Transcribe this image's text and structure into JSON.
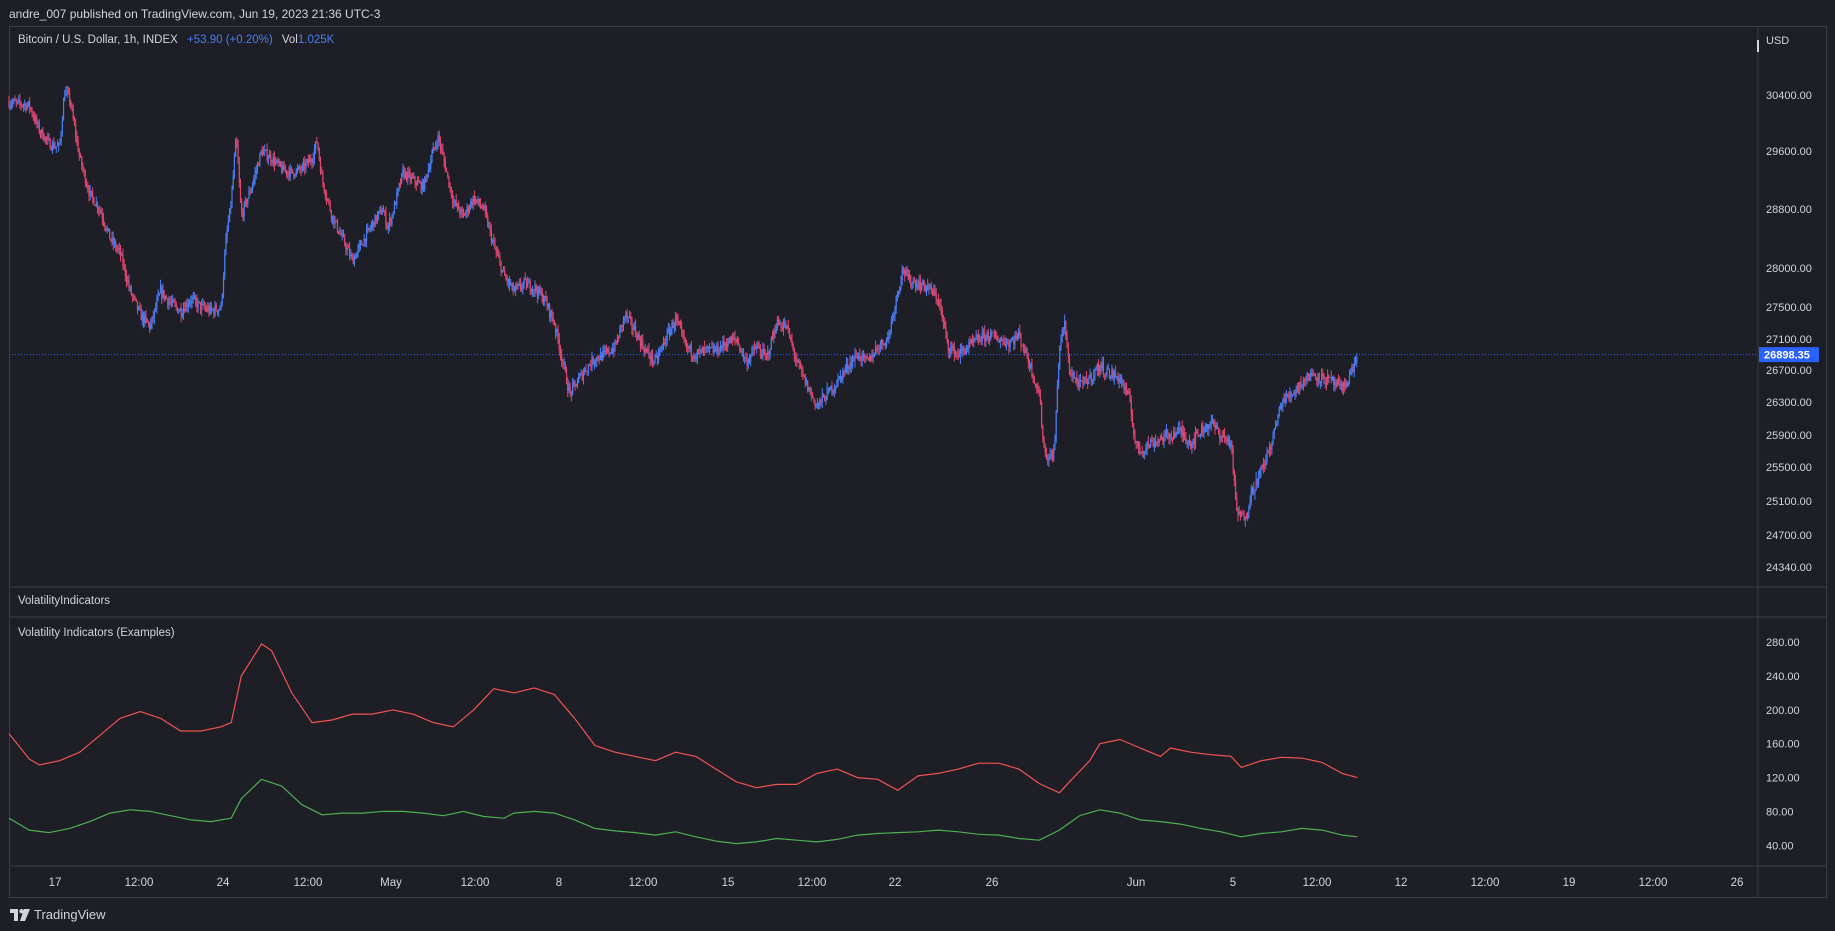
{
  "header": {
    "published": "andre_007 published on TradingView.com, Jun 19, 2023 21:36 UTC-3"
  },
  "legend": {
    "symbol": "Bitcoin / U.S. Dollar, 1h, INDEX",
    "change": "+53.90 (+0.20%)",
    "vol_label": "Vol",
    "vol_value": "1.025K"
  },
  "price_axis": {
    "currency": "USD",
    "last_price": "26898.35"
  },
  "panes": {
    "indicator_title": "VolatilityIndicators",
    "indicator_subtitle": "Volatility Indicators (Examples)"
  },
  "branding": {
    "logo_text": "TradingView"
  },
  "colors": {
    "background": "#1e1f26",
    "up_candle": "#4a7df4",
    "down_candle": "#e0466e",
    "red_line": "#f05350",
    "green_line": "#4caf50",
    "last_price_badge": "#2962ff"
  },
  "chart_data": [
    {
      "type": "candlestick",
      "symbol": "Bitcoin / U.S. Dollar",
      "interval": "1h",
      "price_ticks": [
        30400,
        29600,
        28800,
        28000,
        27500,
        27100,
        26700,
        26300,
        25900,
        25500,
        25100,
        24700,
        24340
      ],
      "ylim": [
        24340,
        30400
      ],
      "last_price": 26898.35,
      "x_ticks": [
        "17",
        "12:00",
        "24",
        "12:00",
        "May",
        "12:00",
        "8",
        "12:00",
        "15",
        "12:00",
        "22",
        "26",
        "Jun",
        "5",
        "12:00",
        "12",
        "12:00",
        "19",
        "12:00",
        "26"
      ],
      "close_path": [
        [
          0.0,
          30300
        ],
        [
          0.02,
          30250
        ],
        [
          0.03,
          29900
        ],
        [
          0.04,
          29700
        ],
        [
          0.05,
          29650
        ],
        [
          0.055,
          30450
        ],
        [
          0.06,
          30350
        ],
        [
          0.07,
          29500
        ],
        [
          0.08,
          29000
        ],
        [
          0.09,
          28800
        ],
        [
          0.1,
          28400
        ],
        [
          0.11,
          28200
        ],
        [
          0.12,
          27700
        ],
        [
          0.13,
          27400
        ],
        [
          0.14,
          27250
        ],
        [
          0.15,
          27700
        ],
        [
          0.16,
          27550
        ],
        [
          0.17,
          27450
        ],
        [
          0.18,
          27600
        ],
        [
          0.19,
          27500
        ],
        [
          0.2,
          27450
        ],
        [
          0.21,
          27500
        ],
        [
          0.215,
          28400
        ],
        [
          0.22,
          28900
        ],
        [
          0.225,
          29800
        ],
        [
          0.23,
          28700
        ],
        [
          0.24,
          29100
        ],
        [
          0.25,
          29600
        ],
        [
          0.26,
          29500
        ],
        [
          0.27,
          29350
        ],
        [
          0.28,
          29300
        ],
        [
          0.29,
          29350
        ],
        [
          0.3,
          29500
        ],
        [
          0.305,
          29750
        ],
        [
          0.31,
          29200
        ],
        [
          0.32,
          28700
        ],
        [
          0.33,
          28400
        ],
        [
          0.34,
          28100
        ],
        [
          0.35,
          28350
        ],
        [
          0.36,
          28600
        ],
        [
          0.37,
          28800
        ],
        [
          0.375,
          28550
        ],
        [
          0.38,
          28750
        ],
        [
          0.39,
          29300
        ],
        [
          0.4,
          29200
        ],
        [
          0.41,
          29100
        ],
        [
          0.42,
          29600
        ],
        [
          0.425,
          29800
        ],
        [
          0.43,
          29500
        ],
        [
          0.44,
          28900
        ],
        [
          0.45,
          28700
        ],
        [
          0.46,
          28950
        ],
        [
          0.47,
          28800
        ],
        [
          0.48,
          28300
        ],
        [
          0.49,
          27900
        ],
        [
          0.5,
          27700
        ],
        [
          0.51,
          27800
        ],
        [
          0.52,
          27750
        ],
        [
          0.53,
          27600
        ],
        [
          0.54,
          27300
        ],
        [
          0.55,
          26700
        ],
        [
          0.555,
          26400
        ],
        [
          0.56,
          26500
        ],
        [
          0.57,
          26700
        ],
        [
          0.58,
          26850
        ],
        [
          0.59,
          26900
        ],
        [
          0.6,
          27000
        ],
        [
          0.61,
          27400
        ],
        [
          0.62,
          27200
        ],
        [
          0.63,
          26950
        ],
        [
          0.64,
          26800
        ],
        [
          0.65,
          27100
        ],
        [
          0.66,
          27350
        ],
        [
          0.67,
          27000
        ],
        [
          0.68,
          26900
        ],
        [
          0.69,
          26950
        ],
        [
          0.7,
          26950
        ],
        [
          0.71,
          27050
        ],
        [
          0.72,
          27100
        ],
        [
          0.73,
          26800
        ],
        [
          0.74,
          27000
        ],
        [
          0.75,
          26850
        ],
        [
          0.76,
          27300
        ],
        [
          0.77,
          27250
        ],
        [
          0.78,
          26800
        ],
        [
          0.79,
          26500
        ],
        [
          0.8,
          26250
        ],
        [
          0.81,
          26400
        ],
        [
          0.82,
          26550
        ],
        [
          0.83,
          26750
        ],
        [
          0.84,
          26900
        ],
        [
          0.85,
          26800
        ],
        [
          0.86,
          27000
        ],
        [
          0.87,
          27100
        ],
        [
          0.88,
          27700
        ],
        [
          0.885,
          28000
        ],
        [
          0.89,
          27850
        ],
        [
          0.9,
          27800
        ],
        [
          0.91,
          27750
        ],
        [
          0.92,
          27600
        ],
        [
          0.93,
          27000
        ],
        [
          0.94,
          26900
        ],
        [
          0.95,
          27000
        ],
        [
          0.96,
          27100
        ],
        [
          0.97,
          27150
        ],
        [
          0.98,
          27100
        ],
        [
          0.99,
          27050
        ],
        [
          1.0,
          27150
        ],
        [
          1.01,
          26800
        ],
        [
          1.02,
          26400
        ],
        [
          1.025,
          25700
        ],
        [
          1.03,
          25600
        ],
        [
          1.035,
          25700
        ],
        [
          1.04,
          27000
        ],
        [
          1.045,
          27300
        ],
        [
          1.05,
          26700
        ],
        [
          1.06,
          26500
        ],
        [
          1.07,
          26600
        ],
        [
          1.08,
          26750
        ],
        [
          1.09,
          26650
        ],
        [
          1.1,
          26600
        ],
        [
          1.11,
          26300
        ],
        [
          1.115,
          25800
        ],
        [
          1.12,
          25700
        ],
        [
          1.13,
          25800
        ],
        [
          1.14,
          25850
        ],
        [
          1.15,
          25900
        ],
        [
          1.16,
          25950
        ],
        [
          1.17,
          25800
        ],
        [
          1.18,
          25950
        ],
        [
          1.19,
          26050
        ],
        [
          1.2,
          25900
        ],
        [
          1.21,
          25800
        ],
        [
          1.215,
          25000
        ],
        [
          1.22,
          24900
        ],
        [
          1.225,
          24950
        ],
        [
          1.23,
          25200
        ],
        [
          1.24,
          25450
        ],
        [
          1.25,
          25800
        ],
        [
          1.26,
          26300
        ],
        [
          1.27,
          26400
        ],
        [
          1.28,
          26550
        ],
        [
          1.29,
          26650
        ],
        [
          1.3,
          26600
        ],
        [
          1.31,
          26550
        ],
        [
          1.32,
          26450
        ],
        [
          1.33,
          26700
        ],
        [
          1.335,
          26900
        ]
      ]
    },
    {
      "type": "line",
      "title": "Volatility Indicators (Examples)",
      "y_ticks": [
        280,
        240,
        200,
        160,
        120,
        80,
        40
      ],
      "ylim": [
        25,
        292
      ],
      "series": [
        {
          "color": "#f05350",
          "points": [
            [
              0.0,
              172
            ],
            [
              0.02,
              142
            ],
            [
              0.03,
              135
            ],
            [
              0.05,
              140
            ],
            [
              0.07,
              150
            ],
            [
              0.09,
              170
            ],
            [
              0.11,
              190
            ],
            [
              0.13,
              198
            ],
            [
              0.15,
              190
            ],
            [
              0.17,
              175
            ],
            [
              0.19,
              175
            ],
            [
              0.21,
              180
            ],
            [
              0.22,
              185
            ],
            [
              0.23,
              240
            ],
            [
              0.25,
              278
            ],
            [
              0.26,
              270
            ],
            [
              0.28,
              220
            ],
            [
              0.3,
              185
            ],
            [
              0.32,
              188
            ],
            [
              0.34,
              195
            ],
            [
              0.36,
              195
            ],
            [
              0.38,
              200
            ],
            [
              0.4,
              195
            ],
            [
              0.42,
              185
            ],
            [
              0.44,
              180
            ],
            [
              0.46,
              200
            ],
            [
              0.48,
              225
            ],
            [
              0.5,
              220
            ],
            [
              0.52,
              226
            ],
            [
              0.54,
              218
            ],
            [
              0.56,
              190
            ],
            [
              0.58,
              158
            ],
            [
              0.6,
              150
            ],
            [
              0.62,
              145
            ],
            [
              0.64,
              140
            ],
            [
              0.66,
              150
            ],
            [
              0.68,
              145
            ],
            [
              0.7,
              130
            ],
            [
              0.72,
              115
            ],
            [
              0.74,
              108
            ],
            [
              0.76,
              112
            ],
            [
              0.78,
              112
            ],
            [
              0.8,
              125
            ],
            [
              0.82,
              130
            ],
            [
              0.84,
              120
            ],
            [
              0.86,
              118
            ],
            [
              0.88,
              105
            ],
            [
              0.9,
              122
            ],
            [
              0.92,
              125
            ],
            [
              0.94,
              130
            ],
            [
              0.96,
              137
            ],
            [
              0.98,
              137
            ],
            [
              1.0,
              130
            ],
            [
              1.02,
              113
            ],
            [
              1.04,
              102
            ],
            [
              1.05,
              115
            ],
            [
              1.07,
              140
            ],
            [
              1.08,
              160
            ],
            [
              1.1,
              165
            ],
            [
              1.12,
              155
            ],
            [
              1.14,
              145
            ],
            [
              1.15,
              155
            ],
            [
              1.17,
              150
            ],
            [
              1.19,
              147
            ],
            [
              1.21,
              145
            ],
            [
              1.22,
              132
            ],
            [
              1.24,
              140
            ],
            [
              1.26,
              144
            ],
            [
              1.28,
              143
            ],
            [
              1.3,
              138
            ],
            [
              1.32,
              125
            ],
            [
              1.335,
              120
            ]
          ]
        },
        {
          "color": "#4caf50",
          "points": [
            [
              0.0,
              72
            ],
            [
              0.02,
              58
            ],
            [
              0.04,
              55
            ],
            [
              0.06,
              60
            ],
            [
              0.08,
              68
            ],
            [
              0.1,
              78
            ],
            [
              0.12,
              82
            ],
            [
              0.14,
              80
            ],
            [
              0.16,
              75
            ],
            [
              0.18,
              70
            ],
            [
              0.2,
              68
            ],
            [
              0.22,
              72
            ],
            [
              0.23,
              95
            ],
            [
              0.25,
              118
            ],
            [
              0.27,
              110
            ],
            [
              0.29,
              88
            ],
            [
              0.31,
              76
            ],
            [
              0.33,
              78
            ],
            [
              0.35,
              78
            ],
            [
              0.37,
              80
            ],
            [
              0.39,
              80
            ],
            [
              0.41,
              78
            ],
            [
              0.43,
              75
            ],
            [
              0.45,
              80
            ],
            [
              0.47,
              74
            ],
            [
              0.49,
              72
            ],
            [
              0.5,
              78
            ],
            [
              0.52,
              80
            ],
            [
              0.54,
              78
            ],
            [
              0.56,
              70
            ],
            [
              0.58,
              60
            ],
            [
              0.6,
              57
            ],
            [
              0.62,
              55
            ],
            [
              0.64,
              52
            ],
            [
              0.66,
              56
            ],
            [
              0.68,
              50
            ],
            [
              0.7,
              45
            ],
            [
              0.72,
              42
            ],
            [
              0.74,
              44
            ],
            [
              0.76,
              48
            ],
            [
              0.78,
              46
            ],
            [
              0.8,
              44
            ],
            [
              0.82,
              47
            ],
            [
              0.84,
              52
            ],
            [
              0.86,
              54
            ],
            [
              0.88,
              55
            ],
            [
              0.9,
              56
            ],
            [
              0.92,
              58
            ],
            [
              0.94,
              56
            ],
            [
              0.96,
              53
            ],
            [
              0.98,
              52
            ],
            [
              1.0,
              48
            ],
            [
              1.02,
              46
            ],
            [
              1.04,
              58
            ],
            [
              1.06,
              75
            ],
            [
              1.08,
              82
            ],
            [
              1.1,
              78
            ],
            [
              1.12,
              70
            ],
            [
              1.14,
              68
            ],
            [
              1.16,
              65
            ],
            [
              1.18,
              60
            ],
            [
              1.2,
              56
            ],
            [
              1.22,
              50
            ],
            [
              1.24,
              54
            ],
            [
              1.26,
              56
            ],
            [
              1.28,
              60
            ],
            [
              1.3,
              58
            ],
            [
              1.32,
              52
            ],
            [
              1.335,
              50
            ]
          ]
        }
      ]
    }
  ]
}
